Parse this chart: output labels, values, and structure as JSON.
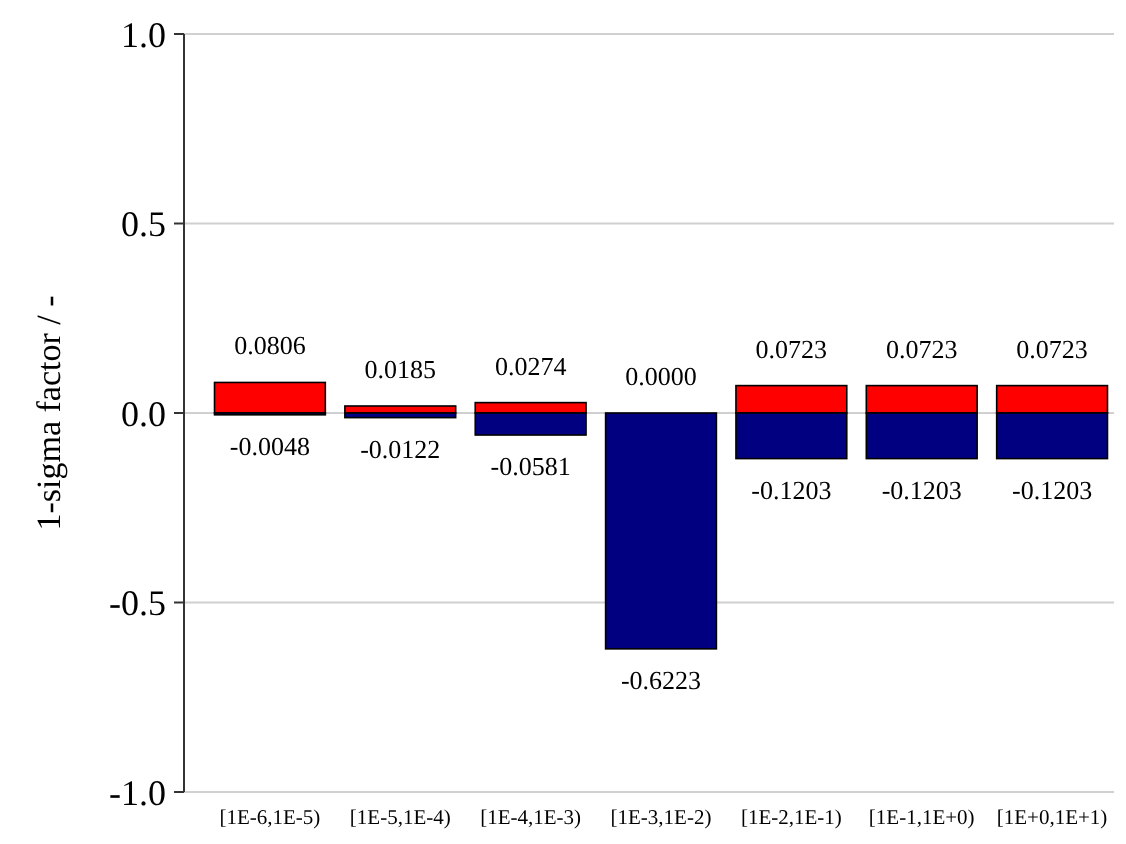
{
  "chart_data": {
    "type": "bar",
    "stacked": true,
    "ylabel": "1-sigma factor / -",
    "categories": [
      "[1E-6,1E-5)",
      "[1E-5,1E-4)",
      "[1E-4,1E-3)",
      "[1E-3,1E-2)",
      "[1E-2,1E-1)",
      "[1E-1,1E+0)",
      "[1E+0,1E+1)"
    ],
    "series": [
      {
        "color": "#ff0000",
        "values": [
          0.0806,
          0.0185,
          0.0274,
          0,
          0.0723,
          0.0723,
          0.0723
        ],
        "value_labels": [
          "0.0806",
          "0.0185",
          "0.0274",
          "0.0000",
          "0.0723",
          "0.0723",
          "0.0723"
        ]
      },
      {
        "color": "#000080",
        "values": [
          -0.0048,
          -0.0122,
          -0.0581,
          -0.6223,
          -0.1203,
          -0.1203,
          -0.1203
        ],
        "value_labels": [
          "-0.0048",
          "-0.0122",
          "-0.0581",
          "-0.6223",
          "-0.1203",
          "-0.1203",
          "-0.1203"
        ]
      }
    ],
    "ylim": [
      -1,
      1
    ],
    "yticks": [
      {
        "value": -1,
        "label": "-1.0"
      },
      {
        "value": -0.5,
        "label": "-0.5"
      },
      {
        "value": 0,
        "label": "0.0"
      },
      {
        "value": 0.5,
        "label": "0.5"
      },
      {
        "value": 1,
        "label": "1.0"
      }
    ],
    "grid": "y"
  }
}
